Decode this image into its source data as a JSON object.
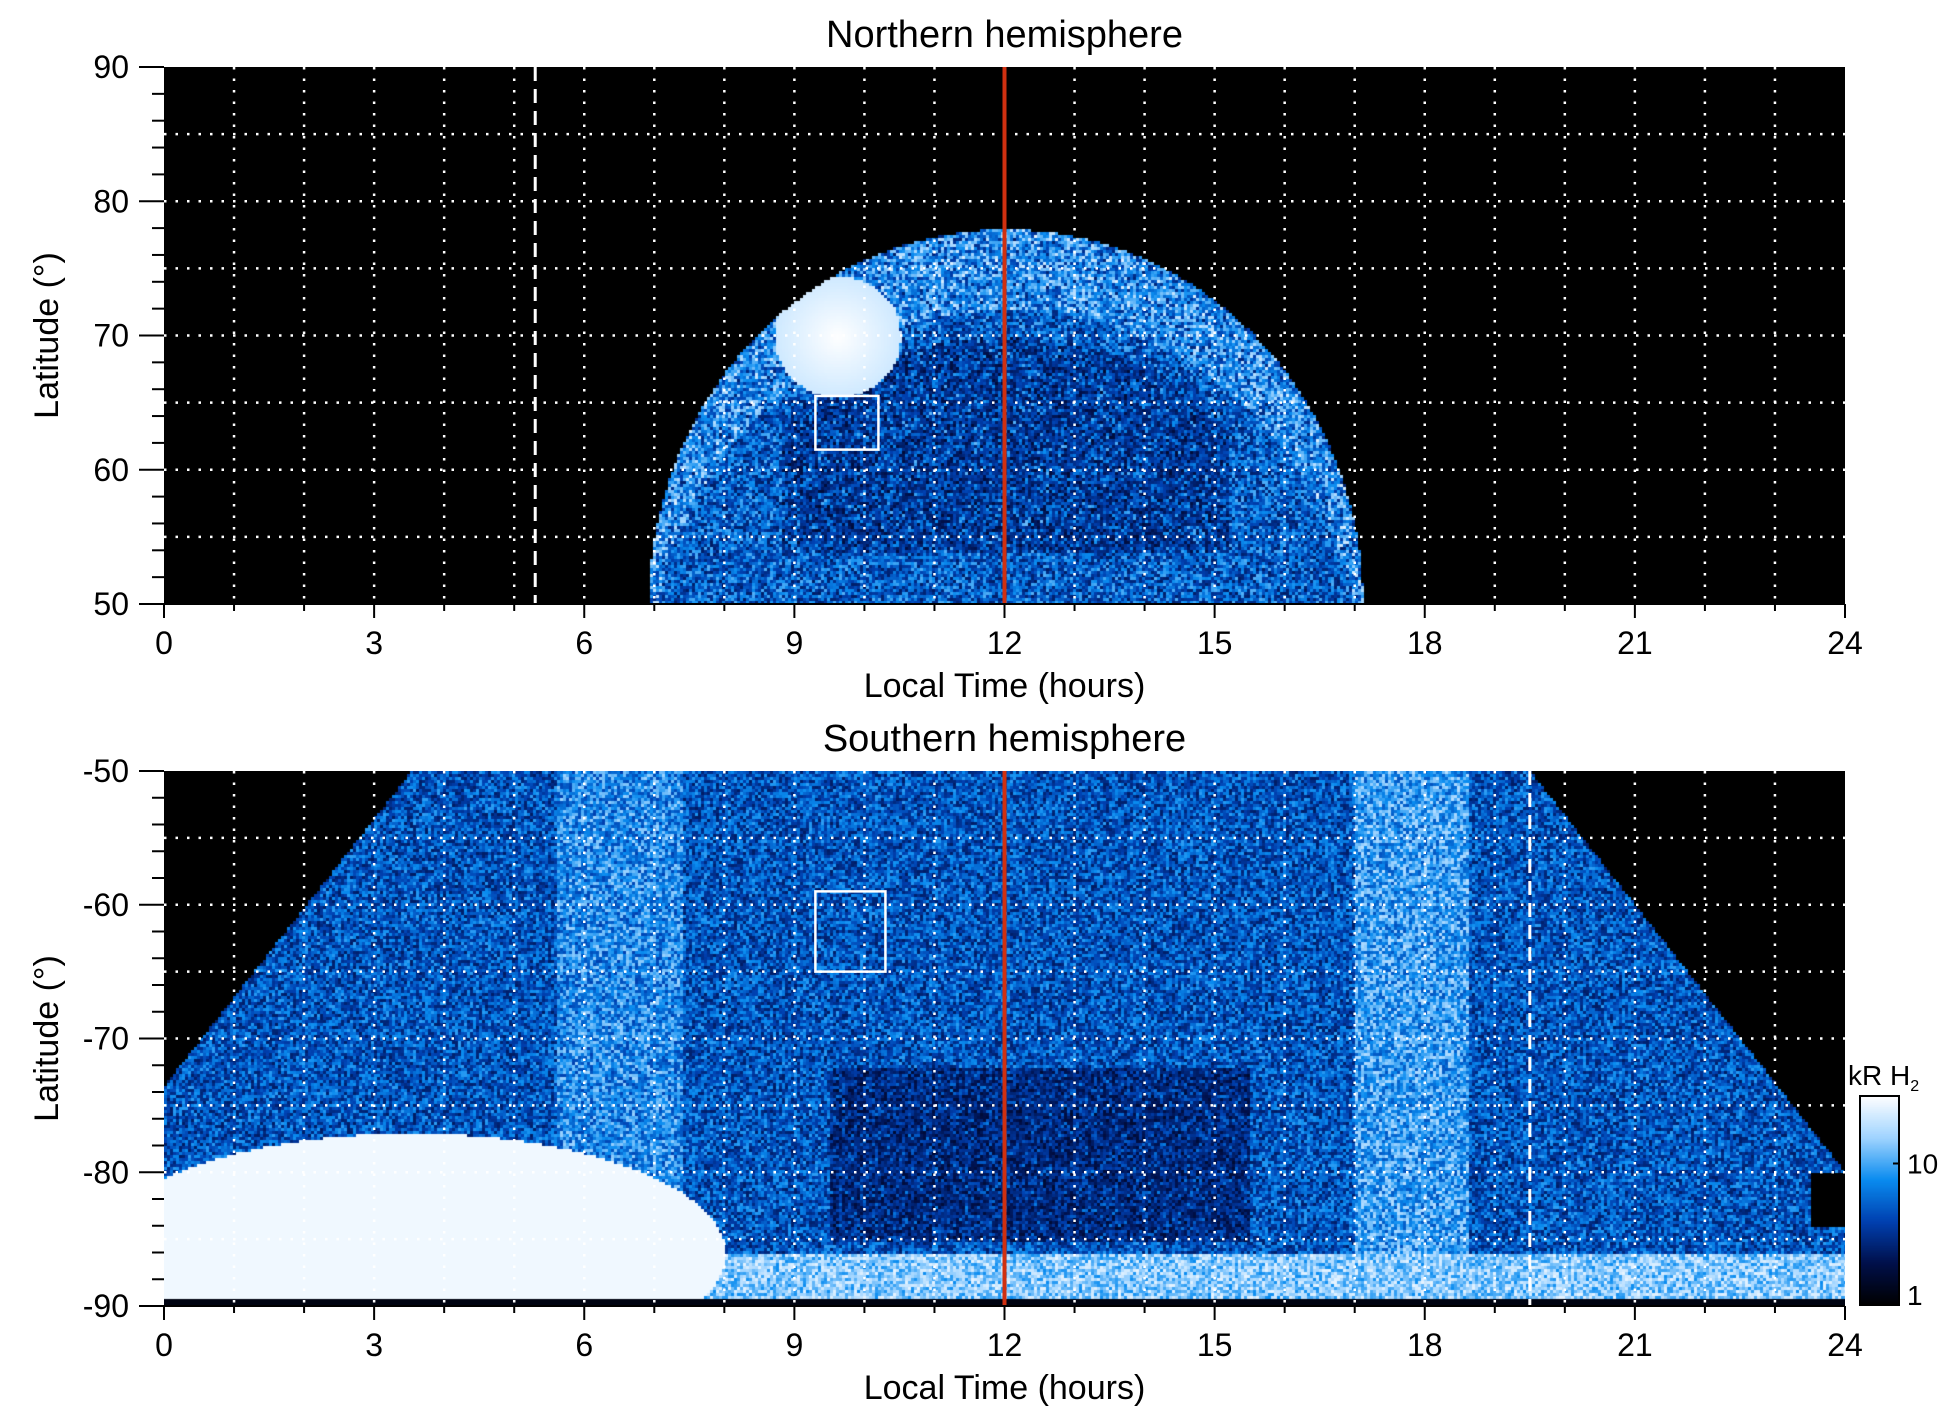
{
  "chart_data": [
    {
      "type": "heatmap",
      "title": "Northern hemisphere",
      "xlabel": "Local Time (hours)",
      "ylabel": "Latitude (°)",
      "xlim": [
        0,
        24
      ],
      "ylim": [
        50,
        90
      ],
      "xticks": [
        "0",
        "3",
        "6",
        "9",
        "12",
        "15",
        "18",
        "21",
        "24"
      ],
      "yticks": [
        "50",
        "60",
        "70",
        "80",
        "90"
      ],
      "grid": true,
      "grid_style": "dotted white, every 1 hour and 5 degrees",
      "red_line_local_time": 12,
      "dashed_line_local_time": 5.3,
      "box": {
        "local_time": [
          9.3,
          10.2
        ],
        "latitude": [
          61.5,
          65.5
        ]
      },
      "emission_extent_local_time": [
        7,
        17.2
      ]
    },
    {
      "type": "heatmap",
      "title": "Southern hemisphere",
      "xlabel": "Local Time (hours)",
      "ylabel": "Latitude (°)",
      "xlim": [
        0,
        24
      ],
      "ylim": [
        -90,
        -50
      ],
      "xticks": [
        "0",
        "3",
        "6",
        "9",
        "12",
        "15",
        "18",
        "21",
        "24"
      ],
      "yticks": [
        "-90",
        "-80",
        "-70",
        "-60",
        "-50"
      ],
      "grid": true,
      "grid_style": "dotted white, every 1 hour and 5 degrees",
      "red_line_local_time": 12,
      "dashed_line_local_time": 19.5,
      "box": {
        "local_time": [
          9.3,
          10.3
        ],
        "latitude": [
          -65,
          -59
        ]
      },
      "emission_extent_local_time_at_minus50": [
        3.5,
        19.5
      ]
    }
  ],
  "colorbar": {
    "label": "kR H",
    "label_subscript": "2",
    "scale": "log",
    "range": [
      1,
      30
    ],
    "ticks": [
      "1",
      "10"
    ],
    "colormap": [
      "#000000",
      "#00104a",
      "#0040b0",
      "#0a8cf0",
      "#9fd4ff",
      "#ffffff"
    ]
  },
  "colors": {
    "red_line": "#d03010",
    "grid": "#ffffff",
    "background": "#000000"
  }
}
